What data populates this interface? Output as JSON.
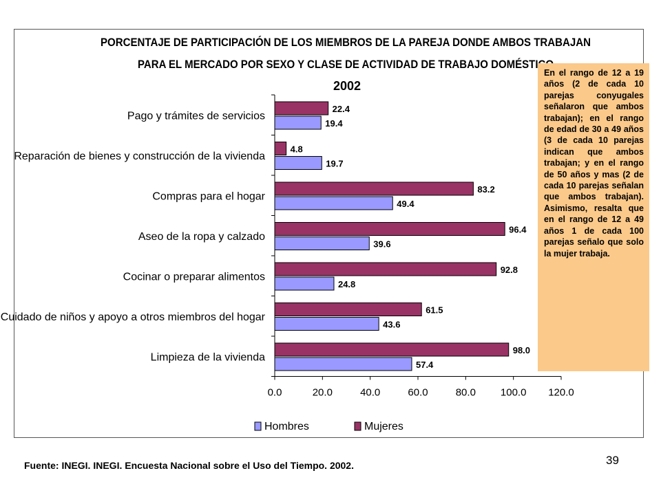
{
  "chart_data": {
    "type": "bar",
    "orientation": "horizontal",
    "title_lines": [
      "PORCENTAJE DE PARTICIPACIÓN DE LOS MIEMBROS DE LA PAREJA DONDE AMBOS TRABAJAN",
      "PARA EL MERCADO POR SEXO Y CLASE DE ACTIVIDAD DE TRABAJO DOMÉSTICO"
    ],
    "subtitle": "2002",
    "categories": [
      "Pago y trámites de servicios",
      "Reparación de bienes y construcción de la vivienda",
      "Compras para el hogar",
      "Aseo de la ropa y calzado",
      "Cocinar o preparar alimentos",
      "Cuidado de niños y apoyo a otros miembros del hogar",
      "Limpieza de la vivienda"
    ],
    "series": [
      {
        "name": "Mujeres",
        "color": "#993366",
        "values": [
          22.4,
          4.8,
          83.2,
          96.4,
          92.8,
          61.5,
          98.0
        ],
        "labels": [
          "22.4",
          "4.8",
          "83.2",
          "96.4",
          "92.8",
          "61.5",
          "98.0"
        ]
      },
      {
        "name": "Hombres",
        "color": "#9999ff",
        "values": [
          19.4,
          19.7,
          49.4,
          39.6,
          24.8,
          43.6,
          57.4
        ],
        "labels": [
          "19.4",
          "19.7",
          "49.4",
          "39.6",
          "24.8",
          "43.6",
          "57.4"
        ]
      }
    ],
    "xlim": [
      0,
      120
    ],
    "xticks": [
      0,
      20,
      40,
      60,
      80,
      100,
      120
    ],
    "xtick_labels": [
      "0.0",
      "20.0",
      "40.0",
      "60.0",
      "80.0",
      "100.0",
      "120.0"
    ],
    "legend_order": [
      "Hombres",
      "Mujeres"
    ],
    "legend_position": "bottom",
    "grid": false
  },
  "note": "En el rango de 12 a 19 años (2 de cada 10 parejas conyugales señalaron que ambos trabajan); en el rango de edad de 30 a 49 años (3 de cada 10 parejas indican que ambos trabajan; y en el rango de 50 años y mas (2 de cada 10 parejas señalan que ambos trabajan). Asimismo, resalta que en el rango de 12 a 49 años 1 de cada 100 parejas señalo que solo la mujer trabaja.",
  "note_color": "#fbc98a",
  "source": "Fuente: INEGI. INEGI. Encuesta Nacional sobre el Uso del Tiempo. 2002.",
  "page_number": "39"
}
